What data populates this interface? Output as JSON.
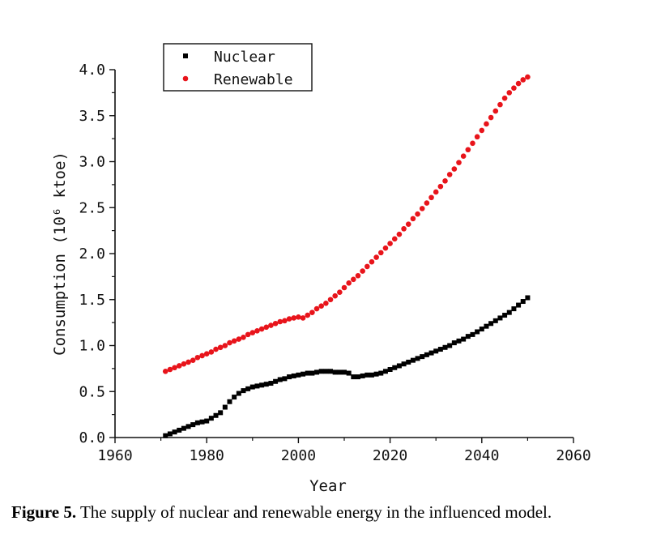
{
  "caption": {
    "label": "Figure 5.",
    "text": " The supply of nuclear and renewable energy in the influenced model."
  },
  "chart_data": {
    "type": "scatter",
    "xlabel": "Year",
    "ylabel": "Consumption (10⁶ ktoe)",
    "xlim": [
      1960,
      2060
    ],
    "ylim": [
      0,
      4.0
    ],
    "xticks": [
      1960,
      1980,
      2000,
      2020,
      2040,
      2060
    ],
    "yticks": [
      0.0,
      0.5,
      1.0,
      1.5,
      2.0,
      2.5,
      3.0,
      3.5,
      4.0
    ],
    "xtick_labels": [
      "1960",
      "1980",
      "2000",
      "2020",
      "2040",
      "2060"
    ],
    "ytick_labels": [
      "0.0",
      "0.5",
      "1.0",
      "1.5",
      "2.0",
      "2.5",
      "3.0",
      "3.5",
      "4.0"
    ],
    "legend_position": "top-left",
    "grid": false,
    "series": [
      {
        "name": "Nuclear",
        "marker": "square",
        "color": "#000000",
        "x": [
          1971,
          1972,
          1973,
          1974,
          1975,
          1976,
          1977,
          1978,
          1979,
          1980,
          1981,
          1982,
          1983,
          1984,
          1985,
          1986,
          1987,
          1988,
          1989,
          1990,
          1991,
          1992,
          1993,
          1994,
          1995,
          1996,
          1997,
          1998,
          1999,
          2000,
          2001,
          2002,
          2003,
          2004,
          2005,
          2006,
          2007,
          2008,
          2009,
          2010,
          2011,
          2012,
          2013,
          2014,
          2015,
          2016,
          2017,
          2018,
          2019,
          2020,
          2021,
          2022,
          2023,
          2024,
          2025,
          2026,
          2027,
          2028,
          2029,
          2030,
          2031,
          2032,
          2033,
          2034,
          2035,
          2036,
          2037,
          2038,
          2039,
          2040,
          2041,
          2042,
          2043,
          2044,
          2045,
          2046,
          2047,
          2048,
          2049,
          2050
        ],
        "y": [
          0.02,
          0.04,
          0.06,
          0.08,
          0.1,
          0.12,
          0.14,
          0.16,
          0.17,
          0.18,
          0.21,
          0.24,
          0.27,
          0.33,
          0.39,
          0.44,
          0.48,
          0.51,
          0.53,
          0.55,
          0.56,
          0.57,
          0.58,
          0.59,
          0.61,
          0.63,
          0.64,
          0.66,
          0.67,
          0.68,
          0.69,
          0.7,
          0.7,
          0.71,
          0.72,
          0.72,
          0.72,
          0.71,
          0.71,
          0.71,
          0.7,
          0.66,
          0.66,
          0.67,
          0.68,
          0.68,
          0.69,
          0.7,
          0.72,
          0.74,
          0.76,
          0.78,
          0.8,
          0.82,
          0.84,
          0.86,
          0.88,
          0.9,
          0.92,
          0.94,
          0.96,
          0.98,
          1.0,
          1.03,
          1.05,
          1.07,
          1.1,
          1.12,
          1.15,
          1.18,
          1.21,
          1.24,
          1.27,
          1.3,
          1.33,
          1.36,
          1.4,
          1.44,
          1.48,
          1.52
        ]
      },
      {
        "name": "Renewable",
        "marker": "circle",
        "color": "#e8141b",
        "x": [
          1971,
          1972,
          1973,
          1974,
          1975,
          1976,
          1977,
          1978,
          1979,
          1980,
          1981,
          1982,
          1983,
          1984,
          1985,
          1986,
          1987,
          1988,
          1989,
          1990,
          1991,
          1992,
          1993,
          1994,
          1995,
          1996,
          1997,
          1998,
          1999,
          2000,
          2001,
          2002,
          2003,
          2004,
          2005,
          2006,
          2007,
          2008,
          2009,
          2010,
          2011,
          2012,
          2013,
          2014,
          2015,
          2016,
          2017,
          2018,
          2019,
          2020,
          2021,
          2022,
          2023,
          2024,
          2025,
          2026,
          2027,
          2028,
          2029,
          2030,
          2031,
          2032,
          2033,
          2034,
          2035,
          2036,
          2037,
          2038,
          2039,
          2040,
          2041,
          2042,
          2043,
          2044,
          2045,
          2046,
          2047,
          2048,
          2049,
          2050
        ],
        "y": [
          0.72,
          0.74,
          0.76,
          0.78,
          0.8,
          0.82,
          0.84,
          0.87,
          0.89,
          0.91,
          0.93,
          0.96,
          0.98,
          1.0,
          1.03,
          1.05,
          1.07,
          1.09,
          1.12,
          1.14,
          1.16,
          1.18,
          1.2,
          1.22,
          1.24,
          1.26,
          1.27,
          1.29,
          1.3,
          1.31,
          1.3,
          1.33,
          1.36,
          1.4,
          1.43,
          1.46,
          1.5,
          1.54,
          1.58,
          1.63,
          1.68,
          1.72,
          1.76,
          1.81,
          1.86,
          1.91,
          1.96,
          2.01,
          2.06,
          2.11,
          2.16,
          2.21,
          2.27,
          2.32,
          2.38,
          2.43,
          2.49,
          2.55,
          2.61,
          2.67,
          2.73,
          2.79,
          2.86,
          2.92,
          2.99,
          3.06,
          3.13,
          3.2,
          3.27,
          3.34,
          3.41,
          3.48,
          3.55,
          3.62,
          3.69,
          3.75,
          3.8,
          3.85,
          3.89,
          3.92
        ]
      }
    ]
  }
}
